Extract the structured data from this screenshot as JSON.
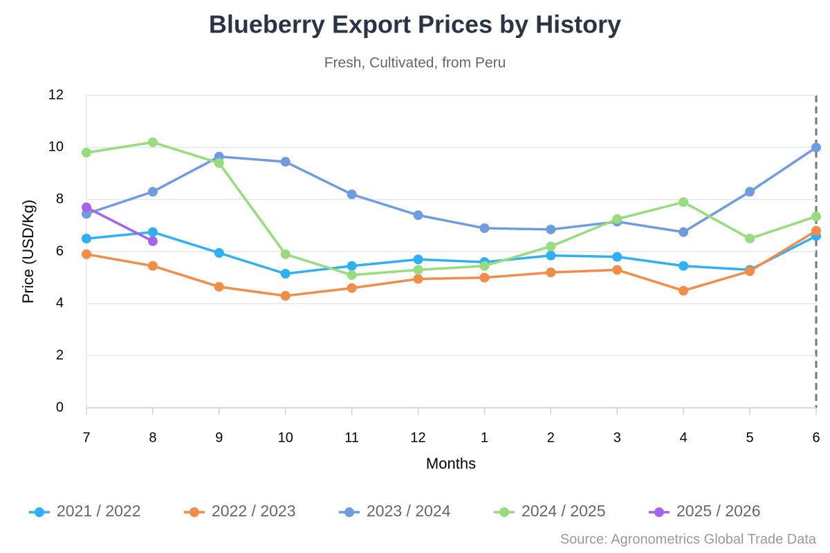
{
  "chart_data": {
    "type": "line",
    "title": "Blueberry Export Prices by History",
    "subtitle": "Fresh, Cultivated, from Peru",
    "y_label": "Price (USD/Kg)",
    "x_label": "Months",
    "source": "Source: Agronometrics Global Trade Data",
    "categories": [
      "7",
      "8",
      "9",
      "10",
      "11",
      "12",
      "1",
      "2",
      "3",
      "4",
      "5",
      "6"
    ],
    "series": [
      {
        "name": "2021 / 2022",
        "color": "#2fb0f5",
        "values": [
          6.5,
          6.75,
          5.95,
          5.15,
          5.45,
          5.7,
          5.6,
          5.85,
          5.8,
          5.45,
          5.3,
          6.6
        ]
      },
      {
        "name": "2022 / 2023",
        "color": "#f28c4a",
        "values": [
          5.9,
          5.45,
          4.65,
          4.3,
          4.6,
          4.95,
          5.0,
          5.2,
          5.3,
          4.5,
          5.25,
          6.8
        ]
      },
      {
        "name": "2023 / 2024",
        "color": "#6f9be0",
        "values": [
          7.45,
          8.3,
          9.65,
          9.45,
          8.2,
          7.4,
          6.9,
          6.85,
          7.15,
          6.75,
          8.3,
          10.0
        ]
      },
      {
        "name": "2024 / 2025",
        "color": "#97dc7d",
        "values": [
          9.8,
          10.2,
          9.4,
          5.9,
          5.1,
          5.3,
          5.45,
          6.2,
          7.25,
          7.9,
          6.5,
          7.35
        ]
      },
      {
        "name": "2025 / 2026",
        "color": "#a365eb",
        "values": [
          7.7,
          6.4,
          null,
          null,
          null,
          null,
          null,
          null,
          null,
          null,
          null,
          null
        ]
      }
    ],
    "ylim": [
      0,
      12
    ],
    "yticks": [
      0,
      2,
      4,
      6,
      8,
      10,
      12
    ],
    "grid": true
  }
}
